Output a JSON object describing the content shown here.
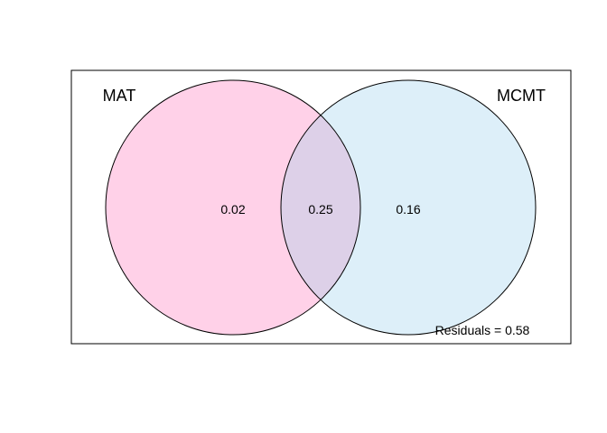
{
  "diagram": {
    "type": "venn",
    "sets": [
      {
        "label": "MAT",
        "color": "#FFD1E8"
      },
      {
        "label": "MCMT",
        "color": "#DDEFF9"
      }
    ],
    "overlap_color": "#DDD0E8",
    "regions": {
      "left_only": "0.02",
      "intersection": "0.25",
      "right_only": "0.16"
    },
    "residuals_text": "Residuals = 0.58"
  }
}
